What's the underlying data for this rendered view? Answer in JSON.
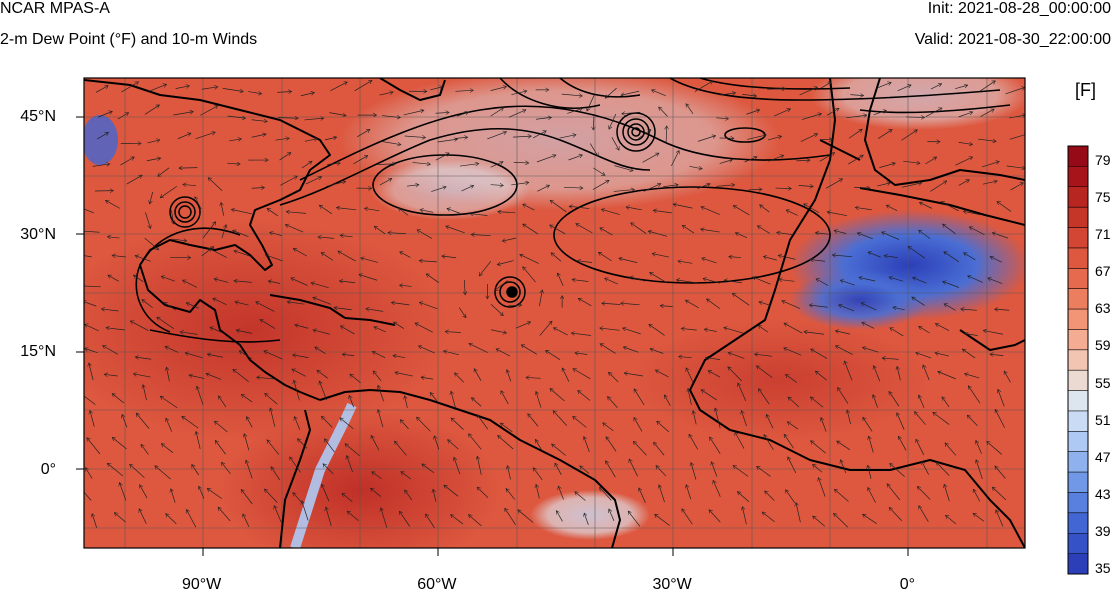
{
  "header": {
    "model": "NCAR MPAS-A",
    "field": "2-m Dew Point (°F) and 10-m Winds",
    "init": "Init: 2021-08-28_00:00:00",
    "valid": "Valid: 2021-08-30_22:00:00"
  },
  "map": {
    "lat_ticks": [
      {
        "value": 45,
        "label": "45°N"
      },
      {
        "value": 30,
        "label": "30°N"
      },
      {
        "value": 15,
        "label": "15°N"
      },
      {
        "value": 0,
        "label": "0°"
      }
    ],
    "lon_ticks": [
      {
        "value": -90,
        "label": "90°W"
      },
      {
        "value": -60,
        "label": "60°W"
      },
      {
        "value": -30,
        "label": "30°W"
      },
      {
        "value": 0,
        "label": "0°"
      }
    ],
    "extent": {
      "lon_min": -105,
      "lon_max": 15,
      "lat_min": -10,
      "lat_max": 50
    }
  },
  "colorbar": {
    "unit": "[F]",
    "labels": [
      "79",
      "75",
      "71",
      "67",
      "63",
      "59",
      "55",
      "51",
      "47",
      "43",
      "39",
      "35"
    ],
    "colors": [
      "#2c3fb8",
      "#3652c7",
      "#4266d4",
      "#5a80df",
      "#7198e6",
      "#8fb2ee",
      "#aecaf4",
      "#c9dbf5",
      "#dde5ef",
      "#eadad2",
      "#f2c5b3",
      "#f4ad93",
      "#f29577",
      "#ec7e60",
      "#e56a4e",
      "#dd583f",
      "#d34633",
      "#c53629",
      "#b82621",
      "#a7151b",
      "#950a16"
    ]
  }
}
